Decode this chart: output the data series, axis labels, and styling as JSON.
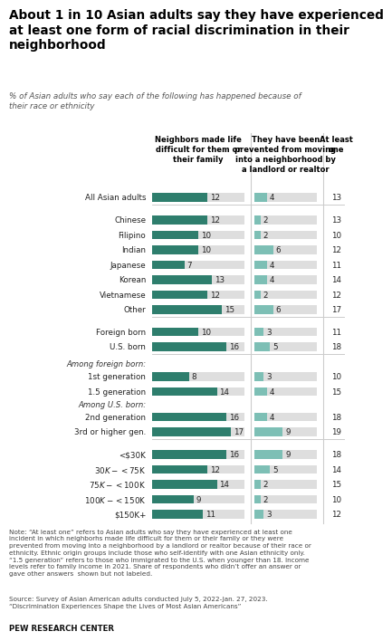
{
  "title": "About 1 in 10 Asian adults say they have experienced\nat least one form of racial discrimination in their\nneighborhood",
  "subtitle": "% of Asian adults who say each of the following has happened because of\ntheir race or ethnicity",
  "col1_header": "Neighbors made life\ndifficult for them or\ntheir family",
  "col2_header": "They have been\nprevented from moving\ninto a neighborhood by\na landlord or realtor",
  "col3_header": "At least\none",
  "categories": [
    "All Asian adults",
    "Chinese",
    "Filipino",
    "Indian",
    "Japanese",
    "Korean",
    "Vietnamese",
    "Other",
    "Foreign born",
    "U.S. born",
    "1st generation",
    "1.5 generation",
    "2nd generation",
    "3rd or higher gen.",
    "<$30K",
    "$30K-<$75K",
    "$75K-<$100K",
    "$100K-<$150K",
    "$150K+"
  ],
  "col1_values": [
    12,
    12,
    10,
    10,
    7,
    13,
    12,
    15,
    10,
    16,
    8,
    14,
    16,
    17,
    16,
    12,
    14,
    9,
    11
  ],
  "col2_values": [
    4,
    2,
    2,
    6,
    4,
    4,
    2,
    6,
    3,
    5,
    3,
    4,
    4,
    9,
    9,
    5,
    2,
    2,
    3
  ],
  "col3_values": [
    13,
    13,
    10,
    12,
    11,
    14,
    12,
    17,
    11,
    18,
    10,
    15,
    18,
    19,
    18,
    14,
    15,
    10,
    12
  ],
  "bar1_color": "#2e7e6d",
  "bar2_color": "#7dbfb5",
  "bar_bg_color": "#dedede",
  "bar_max": 20,
  "note_text": "Note: “At least one” refers to Asian adults who say they have experienced at least one\nincident in which neighborhs made life difficult for them or their family or they were\nprevented from moving into a neighborhood by a landlord or realtor because of their race or\nethnicity. Ethnic origin groups include those who self-identify with one Asian ethnicity only.\n“1.5 generation” refers to those who immigrated to the U.S. when younger than 18. Income\nlevels refer to family income in 2021. Share of respondents who didn’t offer an answer or\ngave other answers  shown but not labeled.",
  "source_text": "Source: Survey of Asian American adults conducted July 5, 2022-Jan. 27, 2023.\n“Discrimination Experiences Shape the Lives of Most Asian Americans”",
  "pew_text": "PEW RESEARCH CENTER"
}
